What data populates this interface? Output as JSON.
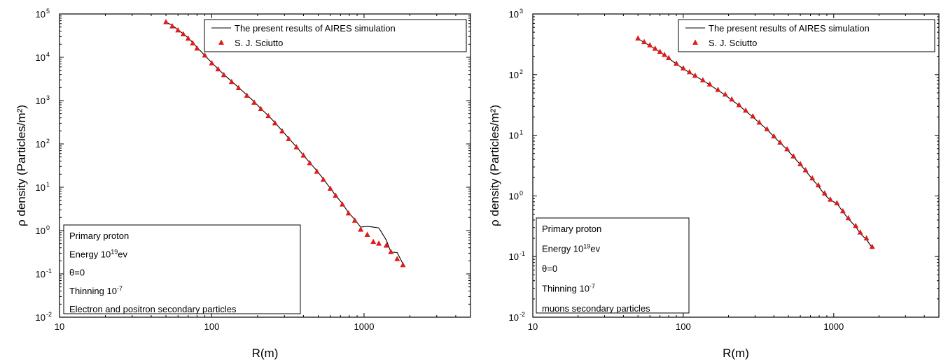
{
  "chart_data": [
    {
      "type": "line",
      "xlabel": "R(m)",
      "ylabel": "ρ density (Particles/m²)",
      "xscale": "log",
      "yscale": "log",
      "xlim": [
        10,
        5000
      ],
      "ylim": [
        0.01,
        100000
      ],
      "xticks": [
        "10",
        "100",
        "1000"
      ],
      "yticks": [
        {
          "base": "10",
          "exp": "-2"
        },
        {
          "base": "10",
          "exp": "-1"
        },
        {
          "base": "10",
          "exp": "0"
        },
        {
          "base": "10",
          "exp": "1"
        },
        {
          "base": "10",
          "exp": "2"
        },
        {
          "base": "10",
          "exp": "3"
        },
        {
          "base": "10",
          "exp": "4"
        },
        {
          "base": "10",
          "exp": "5"
        }
      ],
      "legend": {
        "position": "top-right",
        "entries": [
          "The present results of AIRES simulation",
          "S. J. Sciutto"
        ]
      },
      "series": [
        {
          "name": "The present results of AIRES simulation",
          "style": "line",
          "color": "#000000",
          "x": [
            50,
            55,
            60,
            65,
            70,
            75,
            80,
            90,
            100,
            110,
            120,
            135,
            150,
            170,
            190,
            210,
            235,
            260,
            290,
            320,
            360,
            400,
            440,
            490,
            540,
            600,
            650,
            720,
            790,
            870,
            950,
            1050,
            1150,
            1250,
            1400,
            1500,
            1650,
            1800
          ],
          "y": [
            65000,
            55000,
            43000,
            35000,
            28000,
            22000,
            17000,
            11000,
            7500,
            5400,
            4000,
            2800,
            2000,
            1350,
            940,
            650,
            450,
            310,
            200,
            135,
            85,
            55,
            37,
            24,
            15.5,
            9.5,
            6.5,
            4.2,
            2.6,
            1.8,
            1.2,
            1.25,
            1.2,
            1.15,
            0.6,
            0.32,
            0.31,
            0.17
          ]
        },
        {
          "name": "S. J. Sciutto",
          "style": "marker",
          "marker": "triangle",
          "color": "#dd1c1c",
          "x": [
            50,
            55,
            60,
            65,
            70,
            75,
            80,
            90,
            100,
            110,
            120,
            135,
            150,
            170,
            190,
            210,
            235,
            260,
            290,
            320,
            360,
            400,
            440,
            490,
            540,
            600,
            650,
            720,
            790,
            870,
            950,
            1050,
            1150,
            1250,
            1400,
            1500,
            1650,
            1800
          ],
          "y": [
            65000,
            52000,
            42000,
            34000,
            27000,
            21000,
            16000,
            11000,
            7300,
            5300,
            3900,
            2700,
            1950,
            1300,
            900,
            640,
            440,
            300,
            195,
            130,
            84,
            54,
            36,
            23,
            15,
            9.3,
            6.4,
            4,
            2.5,
            1.7,
            1.05,
            0.8,
            0.55,
            0.5,
            0.45,
            0.32,
            0.22,
            0.16
          ]
        }
      ],
      "info_box": {
        "position": "bottom-left",
        "lines": [
          {
            "text": "Primary proton"
          },
          {
            "text": "Energy 10",
            "sup": "19",
            "tail": "ev"
          },
          {
            "text": "θ=0"
          },
          {
            "text": "Thinning 10",
            "sup": "-7",
            "tail": ""
          },
          {
            "text": "Electron and positron secondary particles"
          }
        ]
      }
    },
    {
      "type": "line",
      "xlabel": "R(m)",
      "ylabel": "ρ density (Particles/m²)",
      "xscale": "log",
      "yscale": "log",
      "xlim": [
        10,
        5000
      ],
      "ylim": [
        0.01,
        1000
      ],
      "xticks": [
        "10",
        "100",
        "1000"
      ],
      "yticks": [
        {
          "base": "10",
          "exp": "-2"
        },
        {
          "base": "10",
          "exp": "-1"
        },
        {
          "base": "10",
          "exp": "0"
        },
        {
          "base": "10",
          "exp": "1"
        },
        {
          "base": "10",
          "exp": "2"
        },
        {
          "base": "10",
          "exp": "3"
        }
      ],
      "legend": {
        "position": "top-right",
        "entries": [
          "The present results of AIRES simulation",
          "S. J. Sciutto"
        ]
      },
      "series": [
        {
          "name": "The present results of AIRES simulation",
          "style": "line",
          "color": "#000000",
          "x": [
            50,
            55,
            60,
            65,
            70,
            75,
            80,
            90,
            100,
            110,
            120,
            135,
            150,
            170,
            190,
            210,
            235,
            260,
            290,
            320,
            360,
            400,
            440,
            490,
            540,
            600,
            650,
            720,
            790,
            870,
            950,
            1050,
            1150,
            1250,
            1400,
            1500,
            1650,
            1800
          ],
          "y": [
            390,
            340,
            300,
            265,
            235,
            210,
            185,
            150,
            125,
            108,
            95,
            80,
            68,
            55,
            46,
            38,
            31,
            25,
            20,
            16,
            12.5,
            9.5,
            7.5,
            5.8,
            4.4,
            3.3,
            2.6,
            1.9,
            1.45,
            1.05,
            0.85,
            0.75,
            0.55,
            0.42,
            0.31,
            0.24,
            0.19,
            0.14
          ]
        },
        {
          "name": "S. J. Sciutto",
          "style": "marker",
          "marker": "triangle",
          "color": "#dd1c1c",
          "x": [
            50,
            55,
            60,
            65,
            70,
            75,
            80,
            90,
            100,
            110,
            120,
            135,
            150,
            170,
            190,
            210,
            235,
            260,
            290,
            320,
            360,
            400,
            440,
            490,
            540,
            600,
            650,
            720,
            790,
            870,
            950,
            1050,
            1150,
            1250,
            1400,
            1500,
            1650,
            1800
          ],
          "y": [
            395,
            345,
            305,
            268,
            238,
            212,
            188,
            152,
            127,
            110,
            96,
            81,
            69,
            56,
            47,
            39,
            31.5,
            25.5,
            20.5,
            16.2,
            12.6,
            9.6,
            7.6,
            5.9,
            4.5,
            3.35,
            2.65,
            1.95,
            1.5,
            1.1,
            0.87,
            0.76,
            0.56,
            0.43,
            0.32,
            0.25,
            0.2,
            0.145
          ]
        }
      ],
      "info_box": {
        "position": "bottom-left",
        "lines": [
          {
            "text": "Primary proton"
          },
          {
            "text": "Energy 10",
            "sup": "19",
            "tail": "ev"
          },
          {
            "text": "θ=0"
          },
          {
            "text": "Thinning 10",
            "sup": "-7",
            "tail": ""
          },
          {
            "text": "muons secondary particles"
          }
        ]
      }
    }
  ]
}
